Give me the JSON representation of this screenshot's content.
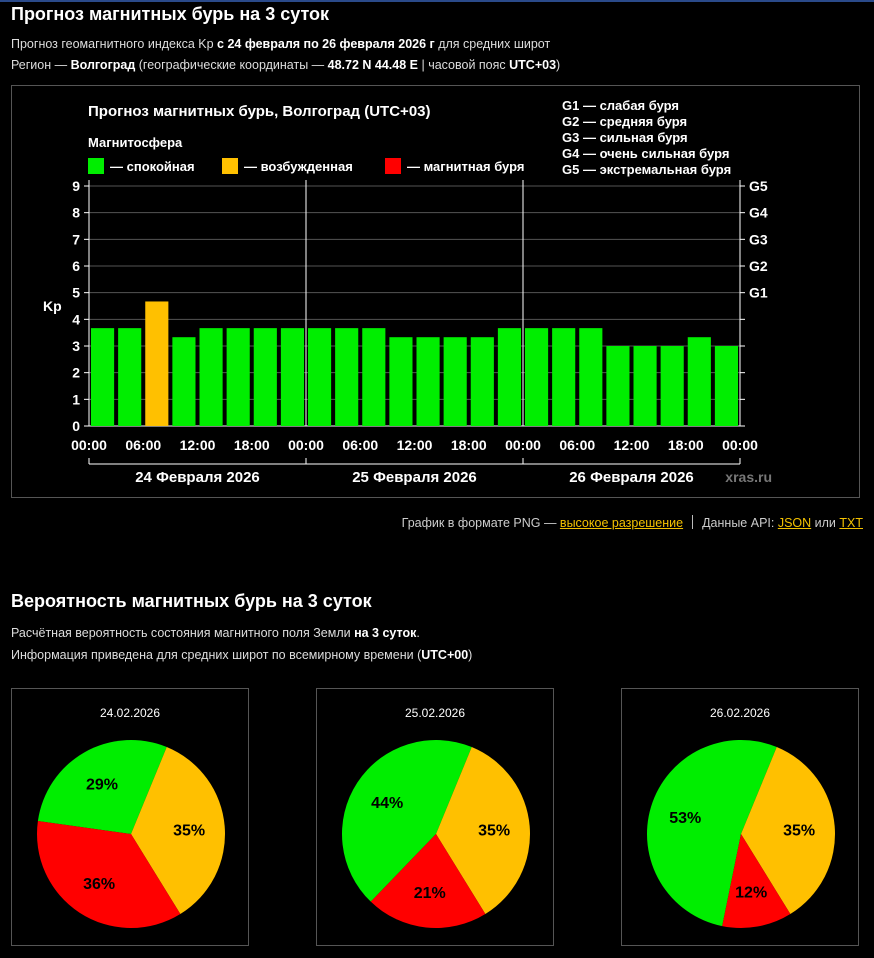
{
  "header": {
    "title": "Прогноз магнитных бурь на 3 суток",
    "line1": {
      "pre": "Прогноз геомагнитного индекса Kp ",
      "bold": "с 24 февраля по 26 февраля 2026 г",
      "post": " для средних широт"
    },
    "line2": {
      "pre": "Регион — ",
      "region": "Волгоград",
      "mid": " (географические координаты — ",
      "coords": "48.72 N 44.48 E",
      "mid2": " | часовой пояс ",
      "tz": "UTC+03",
      "post": ")"
    }
  },
  "links": {
    "png_text": "График в формате PNG — ",
    "png_link": "высокое разрешение",
    "api_text": "Данные API: ",
    "json_link": "JSON",
    "or_text": " или ",
    "txt_link": "TXT"
  },
  "probability": {
    "title": "Вероятность магнитных бурь на 3 суток",
    "line1": {
      "pre": "Расчётная вероятность состояния магнитного поля Земли ",
      "bold": "на 3 суток",
      "post": "."
    },
    "line2": {
      "pre": "Информация приведена для средних широт по всемирному времени (",
      "bold": "UTC+00",
      "post": ")"
    }
  },
  "colors": {
    "calm": "#00ee00",
    "excited": "#ffc000",
    "storm": "#ff0000",
    "grid": "#555555"
  },
  "chart_data": [
    {
      "type": "bar",
      "title": "Прогноз магнитных бурь, Волгоград (UTC+03)",
      "legend_title": "Магнитосфера",
      "legend": [
        {
          "label": "— спокойная",
          "color": "#00ee00"
        },
        {
          "label": "— возбужденная",
          "color": "#ffc000"
        },
        {
          "label": "— магнитная буря",
          "color": "#ff0000"
        }
      ],
      "g_legend": [
        "G1 — слабая буря",
        "G2 — средняя буря",
        "G3 — сильная буря",
        "G4 — очень сильная буря",
        "G5 — экстремальная буря"
      ],
      "ylabel": "Kp",
      "ylim": [
        0,
        9
      ],
      "yticks": [
        "0",
        "1",
        "2",
        "3",
        "4",
        "5",
        "6",
        "7",
        "8",
        "9"
      ],
      "g_ticks": [
        {
          "label": "G1",
          "kp": 5
        },
        {
          "label": "G2",
          "kp": 6
        },
        {
          "label": "G3",
          "kp": 7
        },
        {
          "label": "G4",
          "kp": 8
        },
        {
          "label": "G5",
          "kp": 9
        }
      ],
      "xticks": [
        "00:00",
        "06:00",
        "12:00",
        "18:00",
        "00:00",
        "06:00",
        "12:00",
        "18:00",
        "00:00",
        "06:00",
        "12:00",
        "18:00",
        "00:00"
      ],
      "days": [
        "24 Февраля 2026",
        "25 Февраля 2026",
        "26 Февраля 2026"
      ],
      "watermark": "xras.ru",
      "values": [
        3.67,
        3.67,
        4.67,
        3.33,
        3.67,
        3.67,
        3.67,
        3.67,
        3.67,
        3.67,
        3.67,
        3.33,
        3.33,
        3.33,
        3.33,
        3.67,
        3.67,
        3.67,
        3.67,
        3.0,
        3.0,
        3.0,
        3.33,
        3.0
      ],
      "levels": [
        "calm",
        "calm",
        "excited",
        "calm",
        "calm",
        "calm",
        "calm",
        "calm",
        "calm",
        "calm",
        "calm",
        "calm",
        "calm",
        "calm",
        "calm",
        "calm",
        "calm",
        "calm",
        "calm",
        "calm",
        "calm",
        "calm",
        "calm",
        "calm"
      ]
    },
    {
      "type": "pie",
      "date": "24.02.2026",
      "slices": [
        {
          "name": "calm",
          "value": 29,
          "label": "29%",
          "color": "#00ee00"
        },
        {
          "name": "excited",
          "value": 35,
          "label": "35%",
          "color": "#ffc000"
        },
        {
          "name": "storm",
          "value": 36,
          "label": "36%",
          "color": "#ff0000"
        }
      ]
    },
    {
      "type": "pie",
      "date": "25.02.2026",
      "slices": [
        {
          "name": "calm",
          "value": 44,
          "label": "44%",
          "color": "#00ee00"
        },
        {
          "name": "excited",
          "value": 35,
          "label": "35%",
          "color": "#ffc000"
        },
        {
          "name": "storm",
          "value": 21,
          "label": "21%",
          "color": "#ff0000"
        }
      ]
    },
    {
      "type": "pie",
      "date": "26.02.2026",
      "slices": [
        {
          "name": "calm",
          "value": 53,
          "label": "53%",
          "color": "#00ee00"
        },
        {
          "name": "excited",
          "value": 35,
          "label": "35%",
          "color": "#ffc000"
        },
        {
          "name": "storm",
          "value": 12,
          "label": "12%",
          "color": "#ff0000"
        }
      ]
    }
  ]
}
